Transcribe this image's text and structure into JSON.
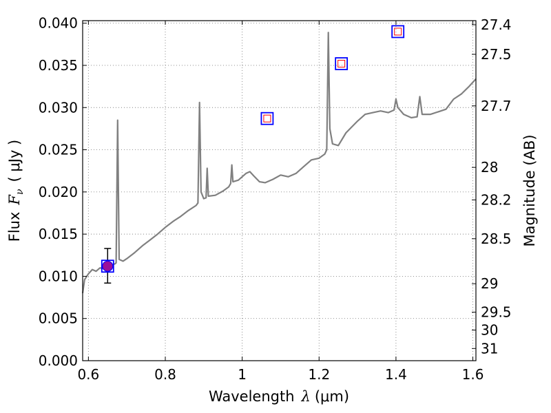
{
  "chart_data": {
    "type": "line",
    "xlabel_prefix": "Wavelength",
    "xlabel_symbol": "λ",
    "xlabel_unit": "(μm)",
    "ylabel_prefix": "Flux",
    "ylabel_symbol": "F",
    "ylabel_subscript": "ν",
    "ylabel_unit": "( μJy )",
    "y2label": "Magnitude (AB)",
    "xlim": [
      0.585,
      1.608
    ],
    "ylim": [
      0.0,
      0.0403
    ],
    "grid": true,
    "xticks": [
      {
        "value": 0.6,
        "label": "0.6"
      },
      {
        "value": 0.8,
        "label": "0.8"
      },
      {
        "value": 1.0,
        "label": "1"
      },
      {
        "value": 1.2,
        "label": "1.2"
      },
      {
        "value": 1.4,
        "label": "1.4"
      },
      {
        "value": 1.6,
        "label": "1.6"
      }
    ],
    "yticks": [
      {
        "value": 0.0,
        "label": "0.000"
      },
      {
        "value": 0.005,
        "label": "0.005"
      },
      {
        "value": 0.01,
        "label": "0.010"
      },
      {
        "value": 0.015,
        "label": "0.015"
      },
      {
        "value": 0.02,
        "label": "0.020"
      },
      {
        "value": 0.025,
        "label": "0.025"
      },
      {
        "value": 0.03,
        "label": "0.030"
      },
      {
        "value": 0.035,
        "label": "0.035"
      },
      {
        "value": 0.04,
        "label": "0.040"
      }
    ],
    "y2ticks": [
      {
        "value": 27.4,
        "label": "27.4"
      },
      {
        "value": 27.5,
        "label": "27.5"
      },
      {
        "value": 27.7,
        "label": "27.7"
      },
      {
        "value": 28.0,
        "label": "28"
      },
      {
        "value": 28.2,
        "label": "28.2"
      },
      {
        "value": 28.5,
        "label": "28.5"
      },
      {
        "value": 29.0,
        "label": "29"
      },
      {
        "value": 29.5,
        "label": "29.5"
      },
      {
        "value": 30.0,
        "label": "30"
      },
      {
        "value": 31.0,
        "label": "31"
      }
    ],
    "series": [
      {
        "style": "line",
        "color": "#808080",
        "points": [
          [
            0.585,
            0.008
          ],
          [
            0.59,
            0.0096
          ],
          [
            0.6,
            0.0103
          ],
          [
            0.61,
            0.0108
          ],
          [
            0.62,
            0.0106
          ],
          [
            0.63,
            0.011
          ],
          [
            0.64,
            0.0109
          ],
          [
            0.65,
            0.0112
          ],
          [
            0.66,
            0.0113
          ],
          [
            0.67,
            0.0115
          ],
          [
            0.672,
            0.0116
          ],
          [
            0.676,
            0.0285
          ],
          [
            0.68,
            0.012
          ],
          [
            0.69,
            0.0118
          ],
          [
            0.7,
            0.0121
          ],
          [
            0.72,
            0.0128
          ],
          [
            0.74,
            0.0136
          ],
          [
            0.76,
            0.0143
          ],
          [
            0.78,
            0.015
          ],
          [
            0.8,
            0.0158
          ],
          [
            0.82,
            0.0165
          ],
          [
            0.84,
            0.0171
          ],
          [
            0.86,
            0.0178
          ],
          [
            0.88,
            0.0184
          ],
          [
            0.885,
            0.0187
          ],
          [
            0.889,
            0.0306
          ],
          [
            0.893,
            0.02
          ],
          [
            0.9,
            0.0192
          ],
          [
            0.906,
            0.0193
          ],
          [
            0.909,
            0.0228
          ],
          [
            0.912,
            0.0195
          ],
          [
            0.93,
            0.0196
          ],
          [
            0.95,
            0.0201
          ],
          [
            0.965,
            0.0206
          ],
          [
            0.97,
            0.021
          ],
          [
            0.973,
            0.0232
          ],
          [
            0.976,
            0.0212
          ],
          [
            0.99,
            0.0214
          ],
          [
            1.0,
            0.0218
          ],
          [
            1.01,
            0.0222
          ],
          [
            1.02,
            0.0224
          ],
          [
            1.03,
            0.0219
          ],
          [
            1.045,
            0.0212
          ],
          [
            1.06,
            0.0211
          ],
          [
            1.08,
            0.0215
          ],
          [
            1.1,
            0.022
          ],
          [
            1.12,
            0.0218
          ],
          [
            1.14,
            0.0222
          ],
          [
            1.16,
            0.023
          ],
          [
            1.18,
            0.0238
          ],
          [
            1.2,
            0.024
          ],
          [
            1.215,
            0.0245
          ],
          [
            1.22,
            0.025
          ],
          [
            1.224,
            0.0389
          ],
          [
            1.228,
            0.0275
          ],
          [
            1.235,
            0.0257
          ],
          [
            1.25,
            0.0255
          ],
          [
            1.27,
            0.027
          ],
          [
            1.3,
            0.0284
          ],
          [
            1.32,
            0.0292
          ],
          [
            1.34,
            0.0294
          ],
          [
            1.36,
            0.0296
          ],
          [
            1.38,
            0.0294
          ],
          [
            1.395,
            0.0297
          ],
          [
            1.4,
            0.031
          ],
          [
            1.405,
            0.03
          ],
          [
            1.42,
            0.0292
          ],
          [
            1.44,
            0.0288
          ],
          [
            1.455,
            0.0289
          ],
          [
            1.462,
            0.0313
          ],
          [
            1.468,
            0.0292
          ],
          [
            1.49,
            0.0292
          ],
          [
            1.51,
            0.0295
          ],
          [
            1.53,
            0.0298
          ],
          [
            1.55,
            0.031
          ],
          [
            1.57,
            0.0316
          ],
          [
            1.59,
            0.0325
          ],
          [
            1.608,
            0.0334
          ]
        ]
      }
    ],
    "points": [
      {
        "x": 0.65,
        "y": 0.0112,
        "marker": "square-filled-circle",
        "err": [
          0.0092,
          0.0133
        ]
      },
      {
        "x": 1.065,
        "y": 0.0287,
        "marker": "square-open"
      },
      {
        "x": 1.258,
        "y": 0.0352,
        "marker": "square-open"
      },
      {
        "x": 1.405,
        "y": 0.039,
        "marker": "square-open"
      }
    ],
    "colors": {
      "line": "#808080",
      "marker_edge": "#0000ff",
      "inner_edge": "#ff0000",
      "fill": "#9b0f9b",
      "grid": "#808080"
    }
  }
}
